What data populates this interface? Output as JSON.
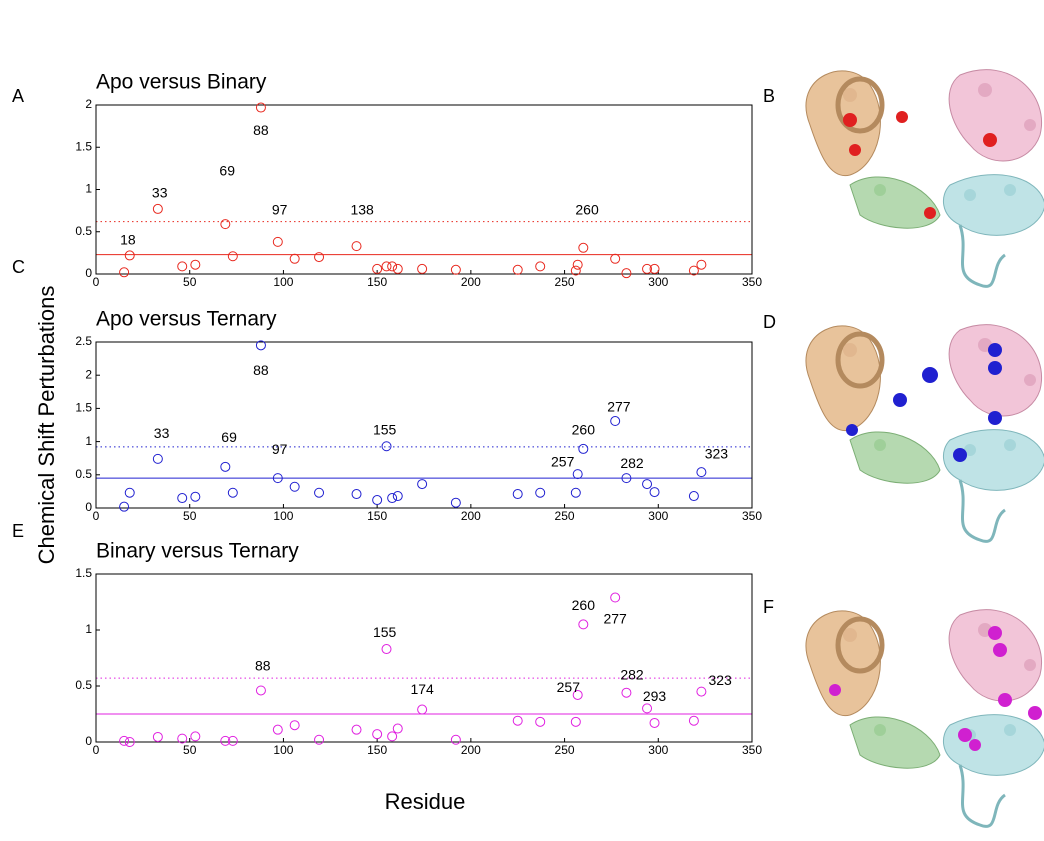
{
  "figure": {
    "ylabel": "Chemical Shift Perturbations",
    "xlabel": "Residue",
    "panel_labels": [
      "A",
      "B",
      "C",
      "D",
      "E",
      "F"
    ]
  },
  "chart_data": [
    {
      "type": "scatter",
      "title": "Apo versus Binary",
      "color": "#e8281e",
      "x": [
        15,
        18,
        33,
        46,
        53,
        69,
        73,
        88,
        97,
        106,
        119,
        139,
        150,
        155,
        158,
        161,
        174,
        192,
        225,
        237,
        256,
        257,
        260,
        277,
        283,
        294,
        298,
        319,
        323
      ],
      "values": [
        0.02,
        0.22,
        0.77,
        0.09,
        0.11,
        0.59,
        0.21,
        1.97,
        0.38,
        0.18,
        0.2,
        0.33,
        0.06,
        0.09,
        0.09,
        0.06,
        0.06,
        0.05,
        0.05,
        0.09,
        0.04,
        0.11,
        0.31,
        0.18,
        0.01,
        0.06,
        0.06,
        0.04,
        0.11
      ],
      "hlines": [
        {
          "value": 0.23,
          "dash": false
        },
        {
          "value": 0.62,
          "dash": true
        }
      ],
      "annotations": [
        {
          "text": "18",
          "x": 17,
          "y": 0.39
        },
        {
          "text": "33",
          "x": 34,
          "y": 0.95
        },
        {
          "text": "69",
          "x": 70,
          "y": 1.21
        },
        {
          "text": "88",
          "x": 88,
          "y": 1.69
        },
        {
          "text": "97",
          "x": 98,
          "y": 0.75
        },
        {
          "text": "138",
          "x": 142,
          "y": 0.75
        },
        {
          "text": "260",
          "x": 262,
          "y": 0.75
        }
      ],
      "xlim": [
        0,
        350
      ],
      "ylim": [
        0,
        2
      ],
      "xticks": [
        0,
        50,
        100,
        150,
        200,
        250,
        300,
        350
      ],
      "yticks": [
        0,
        0.5,
        1,
        1.5,
        2
      ]
    },
    {
      "type": "scatter",
      "title": "Apo versus Ternary",
      "color": "#2020d0",
      "x": [
        15,
        18,
        33,
        46,
        53,
        69,
        73,
        88,
        97,
        106,
        119,
        139,
        150,
        155,
        158,
        161,
        174,
        192,
        225,
        237,
        256,
        257,
        260,
        277,
        283,
        294,
        298,
        319,
        323
      ],
      "values": [
        0.02,
        0.23,
        0.74,
        0.15,
        0.17,
        0.62,
        0.23,
        2.45,
        0.45,
        0.32,
        0.23,
        0.21,
        0.12,
        0.93,
        0.15,
        0.18,
        0.36,
        0.08,
        0.21,
        0.23,
        0.23,
        0.51,
        0.89,
        1.31,
        0.45,
        0.36,
        0.24,
        0.18,
        0.54
      ],
      "hlines": [
        {
          "value": 0.45,
          "dash": false
        },
        {
          "value": 0.92,
          "dash": true
        }
      ],
      "annotations": [
        {
          "text": "33",
          "x": 35,
          "y": 1.11
        },
        {
          "text": "69",
          "x": 71,
          "y": 1.05
        },
        {
          "text": "88",
          "x": 88,
          "y": 2.06
        },
        {
          "text": "97",
          "x": 98,
          "y": 0.87
        },
        {
          "text": "155",
          "x": 154,
          "y": 1.16
        },
        {
          "text": "257",
          "x": 249,
          "y": 0.68
        },
        {
          "text": "260",
          "x": 260,
          "y": 1.16
        },
        {
          "text": "277",
          "x": 279,
          "y": 1.51
        },
        {
          "text": "282",
          "x": 286,
          "y": 0.66
        },
        {
          "text": "323",
          "x": 331,
          "y": 0.8
        }
      ],
      "xlim": [
        0,
        350
      ],
      "ylim": [
        0,
        2.5
      ],
      "xticks": [
        0,
        50,
        100,
        150,
        200,
        250,
        300,
        350
      ],
      "yticks": [
        0,
        0.5,
        1,
        1.5,
        2,
        2.5
      ]
    },
    {
      "type": "scatter",
      "title": "Binary versus Ternary",
      "color": "#e020e0",
      "x": [
        15,
        18,
        33,
        46,
        53,
        69,
        73,
        88,
        97,
        106,
        119,
        139,
        150,
        155,
        158,
        161,
        174,
        192,
        225,
        237,
        256,
        257,
        260,
        277,
        283,
        294,
        298,
        319,
        323
      ],
      "values": [
        0.01,
        0.0,
        0.045,
        0.03,
        0.05,
        0.01,
        0.01,
        0.46,
        0.11,
        0.15,
        0.02,
        0.11,
        0.07,
        0.83,
        0.05,
        0.12,
        0.29,
        0.02,
        0.19,
        0.18,
        0.18,
        0.42,
        1.05,
        1.29,
        0.44,
        0.3,
        0.17,
        0.19,
        0.45
      ],
      "hlines": [
        {
          "value": 0.25,
          "dash": false
        },
        {
          "value": 0.57,
          "dash": true
        }
      ],
      "annotations": [
        {
          "text": "88",
          "x": 89,
          "y": 0.67
        },
        {
          "text": "155",
          "x": 154,
          "y": 0.97
        },
        {
          "text": "174",
          "x": 174,
          "y": 0.46
        },
        {
          "text": "257",
          "x": 252,
          "y": 0.48
        },
        {
          "text": "260",
          "x": 260,
          "y": 1.21
        },
        {
          "text": "277",
          "x": 277,
          "y": 1.09
        },
        {
          "text": "282",
          "x": 286,
          "y": 0.59
        },
        {
          "text": "293",
          "x": 298,
          "y": 0.4
        },
        {
          "text": "323",
          "x": 333,
          "y": 0.54
        }
      ],
      "xlim": [
        0,
        350
      ],
      "ylim": [
        0,
        1.5
      ],
      "xticks": [
        0,
        50,
        100,
        150,
        200,
        250,
        300,
        350
      ],
      "yticks": [
        0,
        0.5,
        1,
        1.5
      ]
    }
  ]
}
